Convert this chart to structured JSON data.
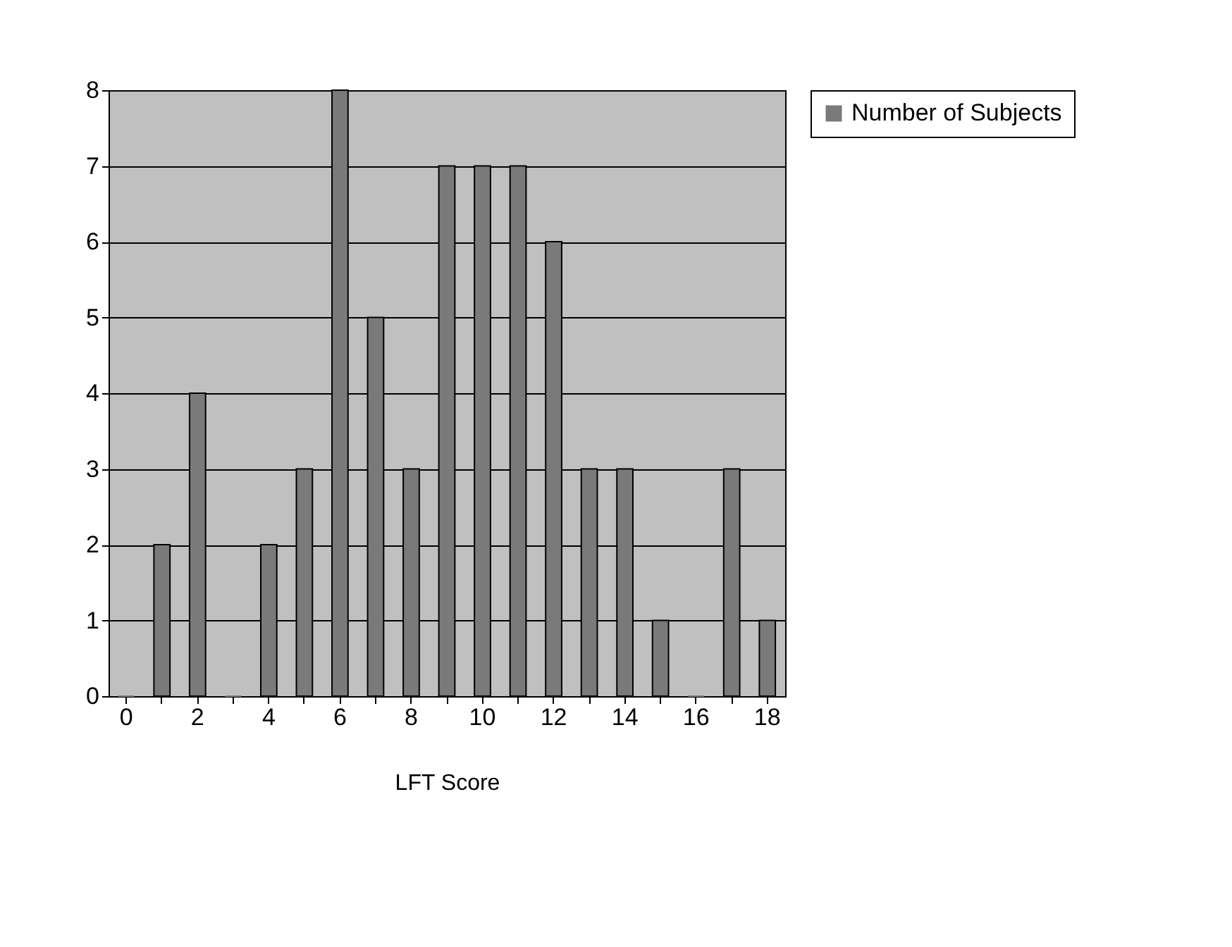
{
  "chart_data": {
    "type": "bar",
    "xlabel": "LFT Score",
    "categories": [
      "0",
      null,
      "2",
      null,
      "4",
      null,
      "6",
      null,
      "8",
      null,
      "10",
      null,
      "12",
      null,
      "14",
      null,
      "16",
      null,
      "18"
    ],
    "series": [
      {
        "name": "Number of Subjects",
        "color": "#7a7a7a",
        "values": [
          0,
          2,
          4,
          0,
          2,
          3,
          8,
          5,
          3,
          7,
          7,
          7,
          6,
          3,
          3,
          1,
          0,
          3,
          1
        ]
      }
    ],
    "ylim": [
      0,
      8
    ],
    "yticks": [
      0,
      1,
      2,
      3,
      4,
      5,
      6,
      7,
      8
    ],
    "grid": "y",
    "legend": "right"
  }
}
